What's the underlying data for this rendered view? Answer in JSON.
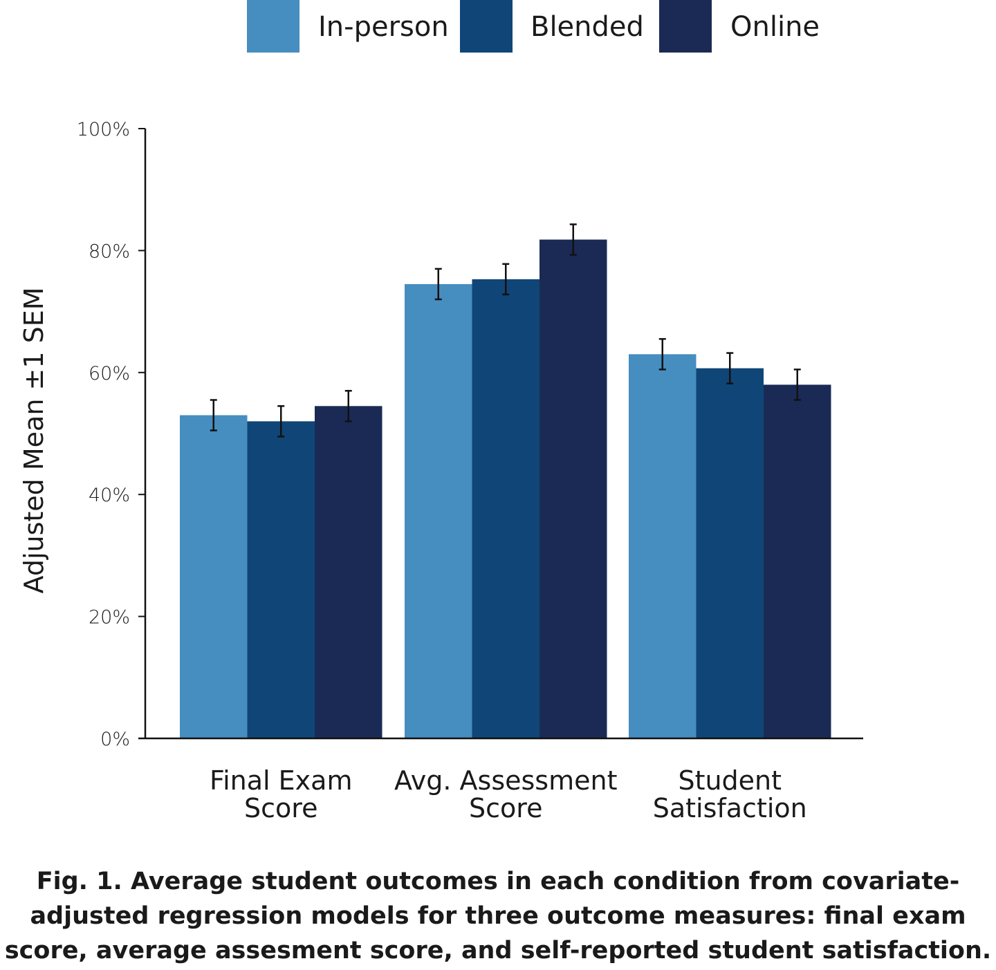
{
  "chart_data": {
    "type": "bar",
    "categories": [
      [
        "Final Exam",
        "Score"
      ],
      [
        "Avg. Assessment",
        "Score"
      ],
      [
        "Student",
        "Satisfaction"
      ]
    ],
    "series": [
      {
        "name": "In-person",
        "color": "#468dc0",
        "values": [
          53,
          74.5,
          63
        ],
        "sem": [
          2.5,
          2.5,
          2.5
        ]
      },
      {
        "name": "Blended",
        "color": "#0f4677",
        "values": [
          52,
          75.3,
          60.7
        ],
        "sem": [
          2.5,
          2.5,
          2.5
        ]
      },
      {
        "name": "Online",
        "color": "#1b2a55",
        "values": [
          54.5,
          81.8,
          58
        ],
        "sem": [
          2.5,
          2.5,
          2.5
        ]
      }
    ],
    "ylabel": "Adjusted Mean ±1 SEM",
    "xlabel": "",
    "ylim": [
      0,
      100
    ],
    "yticks": [
      0,
      20,
      40,
      60,
      80,
      100
    ],
    "ytick_labels": [
      "0%",
      "20%",
      "40%",
      "60%",
      "80%",
      "100%"
    ],
    "legend_position": "top-center",
    "grid": false
  },
  "caption": {
    "lines": [
      "Fig. 1. Average student outcomes in each condition from covariate-",
      "adjusted regression models for three outcome measures: final exam",
      "score, average assesment score, and self-reported student satisfaction."
    ]
  }
}
